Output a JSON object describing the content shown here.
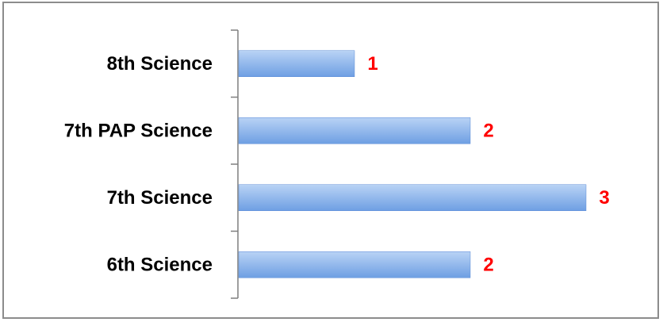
{
  "chart_data": {
    "type": "bar",
    "orientation": "horizontal",
    "categories": [
      "8th Science",
      "7th PAP Science",
      "7th Science",
      "6th Science"
    ],
    "values": [
      1,
      2,
      3,
      2
    ],
    "data_labels": [
      "1",
      "2",
      "3",
      "2"
    ],
    "xlim": [
      0,
      3
    ],
    "title": "",
    "xlabel": "",
    "ylabel": "",
    "grid": false,
    "legend": "none",
    "colors": {
      "bar_top": "#b9d3f5",
      "bar_bottom": "#6e9fe3",
      "bar_stroke": "#5b8bd6",
      "label_color": "#ff0000",
      "axis_color": "#7f7f7f"
    }
  }
}
